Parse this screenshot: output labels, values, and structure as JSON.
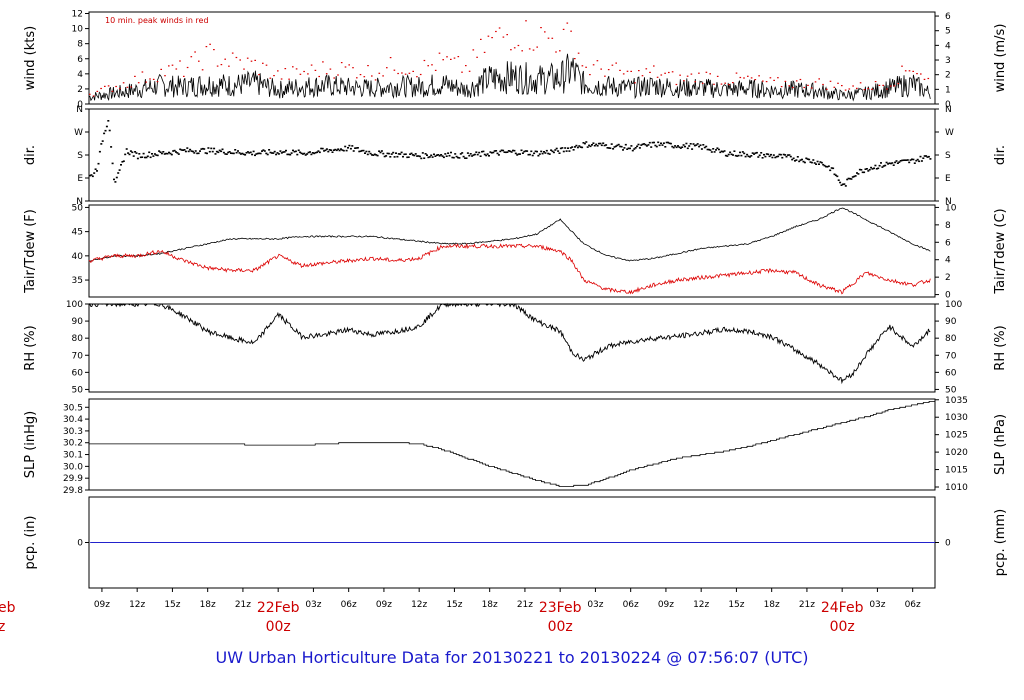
{
  "title": "UW Urban Horticulture Data for 20130221  to  20130224 @ 07:56:07  (UTC)",
  "x_axis": {
    "hour_ticks": [
      "09z",
      "12z",
      "15z",
      "18z",
      "21z",
      "03z",
      "06z",
      "09z",
      "12z",
      "15z",
      "18z",
      "21z",
      "03z",
      "06z",
      "09z",
      "12z",
      "15z",
      "18z",
      "21z",
      "03z",
      "06z"
    ],
    "hour_values": [
      9,
      12,
      15,
      18,
      21,
      27,
      30,
      33,
      36,
      39,
      42,
      45,
      51,
      54,
      57,
      60,
      63,
      66,
      69,
      75,
      78
    ],
    "day_labels": [
      {
        "day": "22Feb",
        "hour": "00z",
        "at": 24
      },
      {
        "day": "23Feb",
        "hour": "00z",
        "at": 48
      },
      {
        "day": "24Feb",
        "hour": "00z",
        "at": 72
      }
    ],
    "edge_label": {
      "day": "eb",
      "hour": "z"
    },
    "range_hours": [
      7.9,
      79.9
    ]
  },
  "colors": {
    "main": "#000000",
    "secondary": "#dd0000",
    "precip": "#2222cc",
    "title": "#1a1acc",
    "daylabel": "#cc0000"
  },
  "chart_data": [
    {
      "type": "line",
      "ylabel": "wind (kts)",
      "ylabel_right": "wind (m/s)",
      "note": "10 min. peak winds in red",
      "ylim": [
        0,
        12.2
      ],
      "yticks": [
        "0",
        "2",
        "4",
        "6",
        "8",
        "10",
        "12"
      ],
      "yticks_right": [
        "0",
        "1",
        "2",
        "3",
        "4",
        "5",
        "6"
      ],
      "series": [
        {
          "x": [
            8,
            10,
            12,
            14,
            16,
            18,
            20,
            22,
            24,
            26,
            28,
            30,
            32,
            34,
            36,
            38,
            40,
            42,
            44,
            46,
            48,
            49,
            50,
            52,
            54,
            56,
            58,
            60,
            62,
            64,
            66,
            68,
            70,
            72,
            74,
            76,
            78,
            79.5
          ],
          "values": [
            1.0,
            1.5,
            2.0,
            2.6,
            2.4,
            2.8,
            2.6,
            2.9,
            2.0,
            2.4,
            2.6,
            2.3,
            2.2,
            2.5,
            2.4,
            2.8,
            2.0,
            3.5,
            3.8,
            3.4,
            3.6,
            4.8,
            2.8,
            2.5,
            2.2,
            2.6,
            2.2,
            2.3,
            2.0,
            2.2,
            1.9,
            2.0,
            1.8,
            1.2,
            1.5,
            2.2,
            2.8,
            1.5
          ]
        },
        {
          "x": [
            8,
            10,
            12,
            14,
            16,
            18,
            20,
            22,
            24,
            26,
            28,
            30,
            32,
            34,
            36,
            38,
            40,
            42,
            44,
            46,
            48,
            49,
            50,
            52,
            54,
            56,
            58,
            60,
            62,
            64,
            66,
            68,
            70,
            72,
            74,
            76,
            78,
            79.5
          ],
          "values": [
            1.5,
            2.5,
            3.5,
            4.5,
            5.0,
            7.0,
            6.0,
            5.5,
            4.0,
            4.5,
            5.0,
            5.0,
            4.5,
            5.5,
            5.0,
            6.0,
            5.0,
            9.0,
            10.0,
            9.5,
            9.0,
            9.5,
            5.0,
            5.0,
            4.0,
            4.5,
            3.5,
            4.0,
            3.5,
            3.5,
            3.0,
            3.0,
            3.0,
            2.5,
            2.5,
            3.0,
            5.5,
            3.0
          ]
        }
      ]
    },
    {
      "type": "scatter",
      "ylabel": "dir.",
      "ylabel_right": "dir.",
      "ylim": [
        0,
        360
      ],
      "yticks": [
        "N",
        "E",
        "S",
        "W",
        "N"
      ],
      "yticks_right": [
        "N",
        "E",
        "S",
        "W",
        "N"
      ],
      "series": [
        {
          "x": [
            8,
            8.5,
            9,
            9.5,
            10,
            11,
            12,
            14,
            16,
            18,
            20,
            22,
            24,
            26,
            28,
            30,
            32,
            34,
            36,
            38,
            40,
            42,
            44,
            46,
            48,
            50,
            52,
            54,
            56,
            58,
            60,
            62,
            64,
            66,
            68,
            70,
            71,
            72,
            73,
            74,
            76,
            78,
            79.5
          ],
          "values": [
            100,
            130,
            250,
            330,
            60,
            200,
            180,
            190,
            200,
            200,
            195,
            190,
            195,
            190,
            200,
            210,
            190,
            185,
            180,
            185,
            180,
            190,
            195,
            190,
            200,
            225,
            220,
            210,
            225,
            220,
            215,
            190,
            185,
            180,
            170,
            155,
            130,
            60,
            110,
            130,
            150,
            160,
            180
          ]
        }
      ]
    },
    {
      "type": "line",
      "ylabel": "Tair/Tdew (F)",
      "ylabel_right": "Tair/Tdew (C)",
      "ylim": [
        31.5,
        50.5
      ],
      "yticks": [
        "35",
        "40",
        "45",
        "50"
      ],
      "yticks_right": [
        "0",
        "2",
        "4",
        "6",
        "8",
        "10"
      ],
      "series": [
        {
          "x": [
            8,
            10,
            12,
            14,
            16,
            18,
            20,
            22,
            24,
            26,
            28,
            30,
            32,
            34,
            36,
            38,
            40,
            42,
            44,
            46,
            48,
            50,
            52,
            54,
            56,
            58,
            60,
            62,
            64,
            66,
            68,
            70,
            72,
            74,
            76,
            78,
            79.5
          ],
          "values": [
            39,
            40,
            40,
            40.5,
            41.5,
            42.5,
            43.5,
            43.5,
            43.5,
            44,
            44,
            44,
            44,
            43.5,
            43,
            42.5,
            42.5,
            43,
            43.5,
            44.5,
            47.5,
            42.5,
            40,
            39,
            39.5,
            40.5,
            41.5,
            42,
            42.5,
            44,
            46,
            47.5,
            50,
            47.5,
            45,
            42.5,
            41
          ]
        },
        {
          "x": [
            8,
            10,
            12,
            14,
            16,
            18,
            20,
            22,
            24,
            26,
            28,
            30,
            32,
            34,
            36,
            38,
            40,
            42,
            44,
            46,
            48,
            49,
            50,
            52,
            54,
            56,
            58,
            60,
            62,
            64,
            66,
            68,
            70,
            72,
            74,
            76,
            78,
            79.5
          ],
          "values": [
            39,
            40,
            40,
            41,
            39,
            37.5,
            37,
            37,
            40,
            38,
            38.5,
            39,
            39.5,
            39,
            39.5,
            42,
            42,
            42,
            42,
            42,
            41,
            39,
            35,
            33,
            32.5,
            34,
            35,
            35.5,
            36,
            36.5,
            37,
            36.5,
            34,
            32.5,
            36.5,
            35,
            34,
            35
          ]
        }
      ]
    },
    {
      "type": "line",
      "ylabel": "RH (%)",
      "ylabel_right": "RH (%)",
      "ylim": [
        48.5,
        100
      ],
      "yticks": [
        "50",
        "60",
        "70",
        "80",
        "90",
        "100"
      ],
      "yticks_right": [
        "50",
        "60",
        "70",
        "80",
        "90",
        "100"
      ],
      "series": [
        {
          "x": [
            8,
            10,
            12,
            14,
            16,
            18,
            20,
            22,
            24,
            26,
            28,
            30,
            32,
            34,
            36,
            38,
            40,
            42,
            44,
            46,
            48,
            49,
            50,
            52,
            54,
            56,
            58,
            60,
            62,
            64,
            66,
            68,
            70,
            72,
            73,
            74,
            76,
            78,
            79.5
          ],
          "values": [
            100,
            100,
            100,
            100,
            93,
            84,
            80,
            77,
            94,
            81,
            82,
            85,
            82,
            84,
            87,
            100,
            100,
            100,
            100,
            90,
            84,
            72,
            67,
            75,
            78,
            80,
            81,
            83,
            85,
            84,
            81,
            73,
            65,
            55,
            60,
            70,
            87,
            75,
            85
          ]
        }
      ]
    },
    {
      "type": "line",
      "ylabel": "SLP (inHg)",
      "ylabel_right": "SLP (hPa)",
      "ylim": [
        29.8,
        30.57
      ],
      "yticks": [
        "29.8",
        "29.9",
        "30.0",
        "30.1",
        "30.2",
        "30.3",
        "30.4",
        "30.5"
      ],
      "yticks_right": [
        "1010",
        "1015",
        "1020",
        "1025",
        "1030",
        "1035"
      ],
      "series": [
        {
          "x": [
            8,
            10,
            12,
            14,
            16,
            18,
            20,
            22,
            24,
            26,
            28,
            30,
            32,
            34,
            36,
            38,
            40,
            42,
            44,
            46,
            48,
            50,
            52,
            54,
            56,
            58,
            60,
            62,
            64,
            66,
            68,
            70,
            72,
            74,
            76,
            78,
            79.5
          ],
          "values": [
            30.19,
            30.19,
            30.19,
            30.19,
            30.19,
            30.19,
            30.19,
            30.18,
            30.18,
            30.18,
            30.19,
            30.2,
            30.2,
            30.2,
            30.19,
            30.14,
            30.07,
            30.0,
            29.94,
            29.88,
            29.83,
            29.84,
            29.9,
            29.97,
            30.02,
            30.07,
            30.1,
            30.13,
            30.17,
            30.22,
            30.27,
            30.32,
            30.37,
            30.42,
            30.48,
            30.52,
            30.55
          ]
        }
      ]
    },
    {
      "type": "line",
      "ylabel": "pcp. (in)",
      "ylabel_right": "pcp. (mm)",
      "ylim": [
        -0.5,
        0.5
      ],
      "yticks": [
        "0"
      ],
      "yticks_right": [
        "0"
      ],
      "series": [
        {
          "x": [
            8,
            79.9
          ],
          "values": [
            0,
            0
          ]
        }
      ]
    }
  ]
}
